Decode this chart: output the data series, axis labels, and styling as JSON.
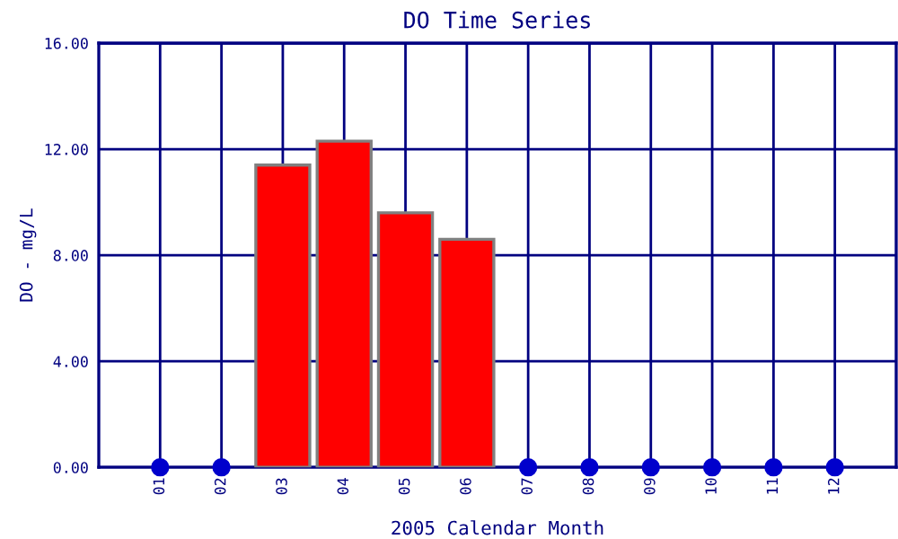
{
  "chart_data": {
    "type": "bar",
    "title": "DO Time Series",
    "xlabel": "2005 Calendar Month",
    "ylabel": "DO - mg/L",
    "categories": [
      "01",
      "02",
      "03",
      "04",
      "05",
      "06",
      "07",
      "08",
      "09",
      "10",
      "11",
      "12"
    ],
    "series": [
      {
        "color": "#ff0000",
        "values": [
          null,
          null,
          11.4,
          12.3,
          9.6,
          8.6,
          null,
          null,
          null,
          null,
          null,
          null
        ]
      },
      {
        "type": "scatter",
        "color": "#0000cc",
        "values": [
          0,
          0,
          null,
          null,
          null,
          null,
          0,
          0,
          0,
          0,
          0,
          0
        ]
      }
    ],
    "ylim": [
      0,
      16
    ],
    "yticks": [
      {
        "value": 0,
        "label": "0.00"
      },
      {
        "value": 4,
        "label": "4.00"
      },
      {
        "value": 8,
        "label": "8.00"
      },
      {
        "value": 12,
        "label": "12.00"
      },
      {
        "value": 16,
        "label": "16.00"
      }
    ],
    "grid": true,
    "marker": "circle",
    "legend": false
  }
}
